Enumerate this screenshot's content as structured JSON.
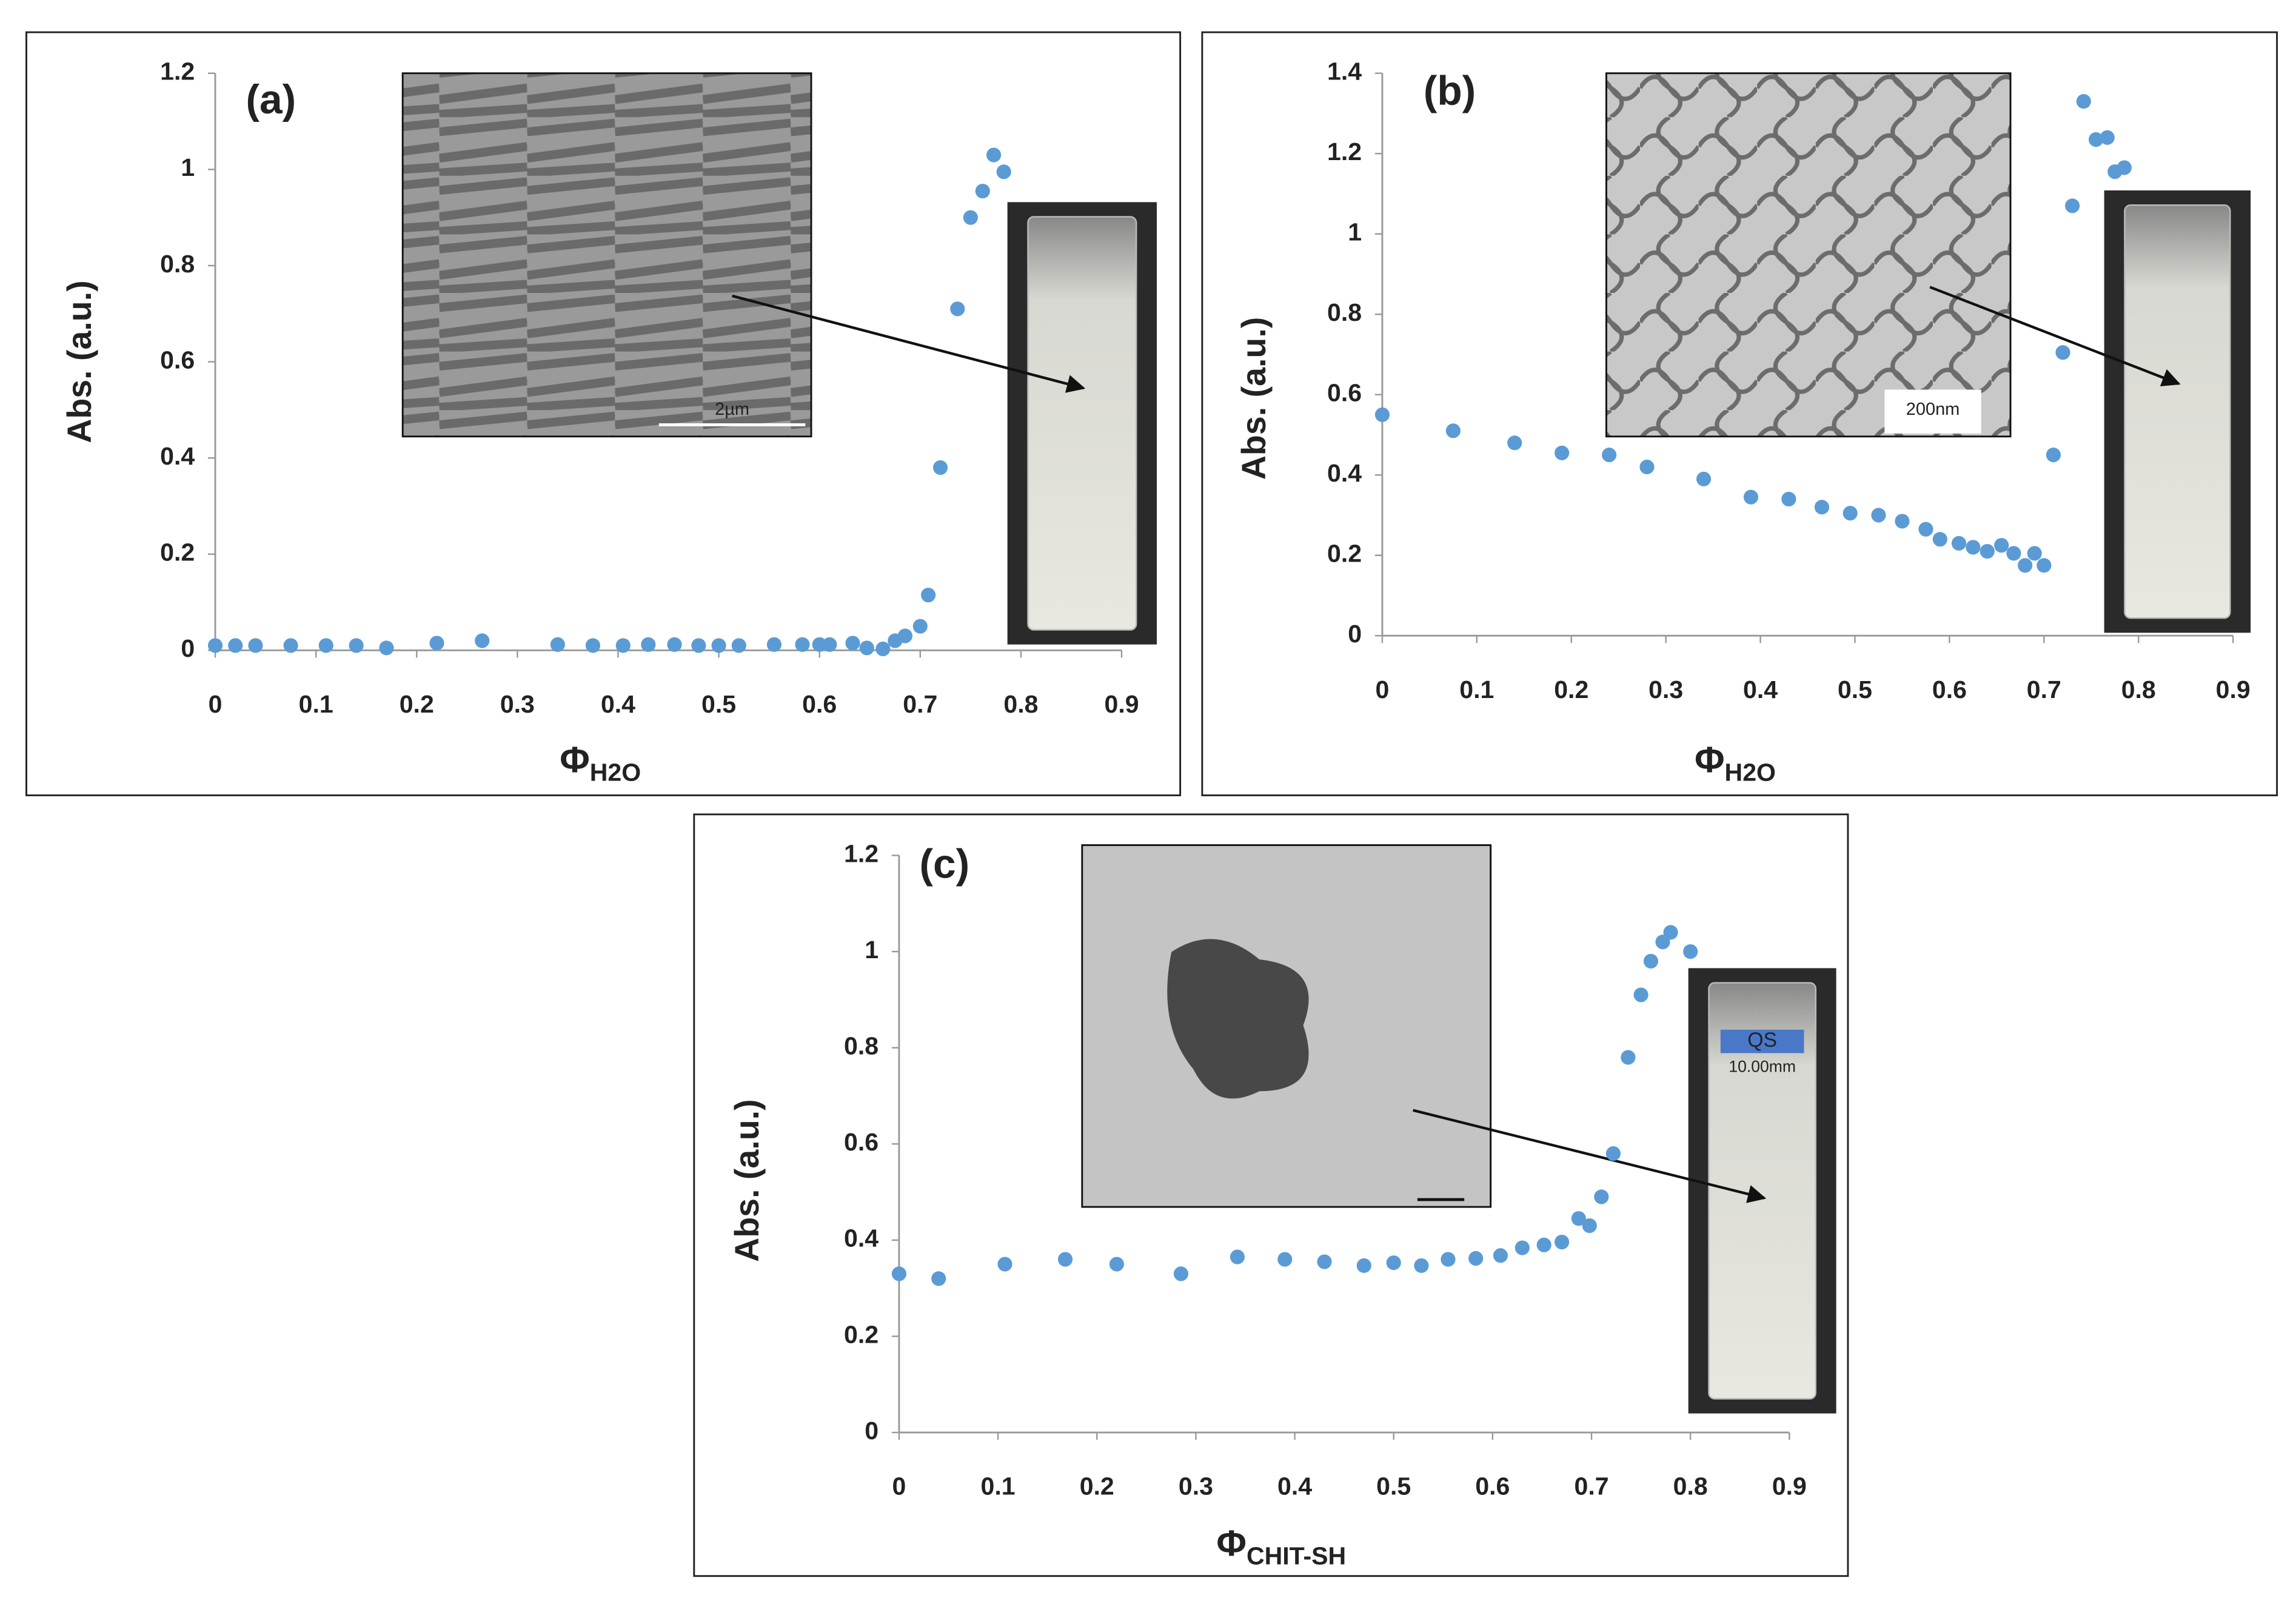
{
  "chart_data": [
    {
      "type": "scatter",
      "title": "(a)",
      "ylabel": "Abs. (a.u.)",
      "xlabel": "Φ",
      "xlabel_subscript": "H2O",
      "color": "#5b9bd5",
      "inset_scale_label": "2µm",
      "x": [
        0,
        0.02,
        0.04,
        0.075,
        0.11,
        0.14,
        0.17,
        0.22,
        0.265,
        0.34,
        0.375,
        0.405,
        0.43,
        0.456,
        0.48,
        0.5,
        0.52,
        0.555,
        0.583,
        0.6,
        0.61,
        0.633,
        0.647,
        0.663,
        0.675,
        0.685,
        0.7,
        0.708,
        0.72,
        0.737,
        0.75,
        0.762,
        0.773,
        0.783
      ],
      "values": [
        0.01,
        0.01,
        0.01,
        0.01,
        0.01,
        0.01,
        0.005,
        0.015,
        0.02,
        0.012,
        0.01,
        0.01,
        0.012,
        0.012,
        0.01,
        0.01,
        0.01,
        0.012,
        0.012,
        0.012,
        0.012,
        0.015,
        0.005,
        0.003,
        0.02,
        0.03,
        0.05,
        0.115,
        0.38,
        0.71,
        0.9,
        0.955,
        1.03,
        0.995
      ],
      "xlim": [
        0,
        0.9
      ],
      "xticks": [
        0,
        0.1,
        0.2,
        0.3,
        0.4,
        0.5,
        0.6,
        0.7,
        0.8,
        0.9
      ],
      "ylim": [
        0,
        1.2
      ],
      "yticks": [
        0,
        0.2,
        0.4,
        0.6,
        0.8,
        1,
        1.2
      ]
    },
    {
      "type": "scatter",
      "title": "(b)",
      "ylabel": "Abs. (a.u.)",
      "xlabel": "Φ",
      "xlabel_subscript": "H2O",
      "color": "#5b9bd5",
      "inset_scale_label": "200nm",
      "x": [
        0,
        0.075,
        0.14,
        0.19,
        0.24,
        0.28,
        0.34,
        0.39,
        0.43,
        0.465,
        0.495,
        0.525,
        0.55,
        0.575,
        0.59,
        0.61,
        0.625,
        0.64,
        0.655,
        0.668,
        0.68,
        0.69,
        0.7,
        0.71,
        0.72,
        0.73,
        0.742,
        0.755,
        0.767,
        0.775,
        0.785
      ],
      "values": [
        0.55,
        0.51,
        0.48,
        0.455,
        0.45,
        0.42,
        0.39,
        0.345,
        0.34,
        0.32,
        0.305,
        0.3,
        0.285,
        0.265,
        0.24,
        0.23,
        0.22,
        0.21,
        0.225,
        0.205,
        0.175,
        0.205,
        0.175,
        0.45,
        0.705,
        1.07,
        1.33,
        1.235,
        1.24,
        1.155,
        1.165
      ],
      "xlim": [
        0,
        0.9
      ],
      "xticks": [
        0,
        0.1,
        0.2,
        0.3,
        0.4,
        0.5,
        0.6,
        0.7,
        0.8,
        0.9
      ],
      "ylim": [
        0,
        1.4
      ],
      "yticks": [
        0,
        0.2,
        0.4,
        0.6,
        0.8,
        1,
        1.2,
        1.4
      ]
    },
    {
      "type": "scatter",
      "title": "(c)",
      "ylabel": "Abs. (a.u.)",
      "xlabel": "Φ",
      "xlabel_subscript": "CHIT-SH",
      "color": "#5b9bd5",
      "cuvette_labels": [
        "QS",
        "10.00mm"
      ],
      "x": [
        0,
        0.04,
        0.107,
        0.168,
        0.22,
        0.285,
        0.342,
        0.39,
        0.43,
        0.47,
        0.5,
        0.528,
        0.555,
        0.583,
        0.608,
        0.63,
        0.652,
        0.67,
        0.687,
        0.698,
        0.71,
        0.722,
        0.737,
        0.75,
        0.76,
        0.772,
        0.78,
        0.8
      ],
      "values": [
        0.33,
        0.32,
        0.35,
        0.36,
        0.35,
        0.33,
        0.365,
        0.36,
        0.355,
        0.347,
        0.353,
        0.347,
        0.36,
        0.362,
        0.368,
        0.384,
        0.39,
        0.396,
        0.445,
        0.43,
        0.49,
        0.58,
        0.78,
        0.91,
        0.98,
        1.02,
        1.04,
        1.0
      ],
      "xlim": [
        0,
        0.9
      ],
      "xticks": [
        0,
        0.1,
        0.2,
        0.3,
        0.4,
        0.5,
        0.6,
        0.7,
        0.8,
        0.9
      ],
      "ylim": [
        0,
        1.2
      ],
      "yticks": [
        0,
        0.2,
        0.4,
        0.6,
        0.8,
        1,
        1.2
      ]
    }
  ]
}
